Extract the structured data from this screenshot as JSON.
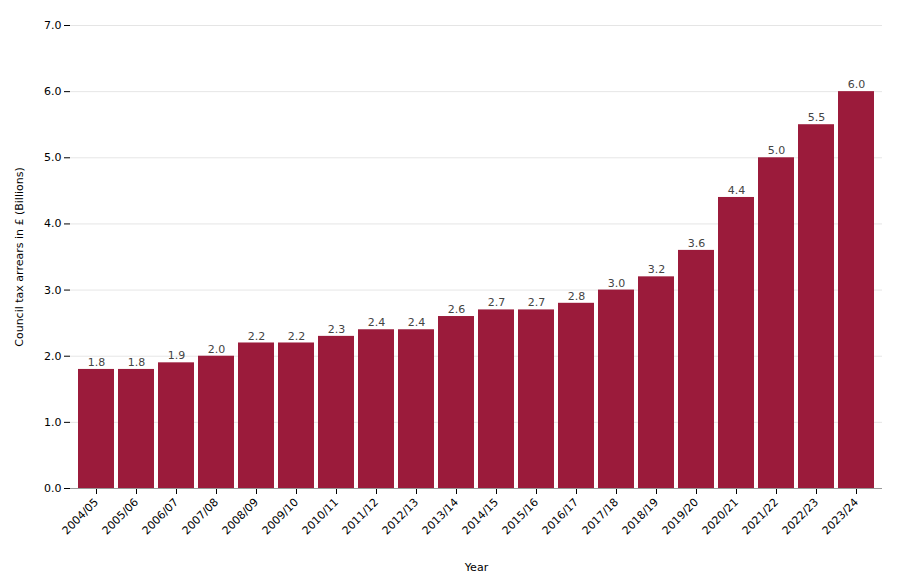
{
  "chart_data": {
    "type": "bar",
    "categories": [
      "2004/05",
      "2005/06",
      "2006/07",
      "2007/08",
      "2008/09",
      "2009/10",
      "2010/11",
      "2011/12",
      "2012/13",
      "2013/14",
      "2014/15",
      "2015/16",
      "2016/17",
      "2017/18",
      "2018/19",
      "2019/20",
      "2020/21",
      "2021/22",
      "2022/23",
      "2023/24"
    ],
    "values": [
      1.8,
      1.8,
      1.9,
      2.0,
      2.2,
      2.2,
      2.3,
      2.4,
      2.4,
      2.6,
      2.7,
      2.7,
      2.8,
      3.0,
      3.2,
      3.6,
      4.4,
      5.0,
      5.5,
      6.0
    ],
    "value_labels": [
      "1.8",
      "1.8",
      "1.9",
      "2.0",
      "2.2",
      "2.2",
      "2.3",
      "2.4",
      "2.4",
      "2.6",
      "2.7",
      "2.7",
      "2.8",
      "3.0",
      "3.2",
      "3.6",
      "4.4",
      "5.0",
      "5.5",
      "6.0"
    ],
    "data_labels": true,
    "color": "#9B1B3B",
    "xlabel": "Year",
    "ylabel": "Council tax arrears in £ (Billions)",
    "ylim": [
      0.0,
      7.0
    ],
    "yticks": [
      {
        "value": 0,
        "label": "0.0"
      },
      {
        "value": 1,
        "label": "1.0"
      },
      {
        "value": 2,
        "label": "2.0"
      },
      {
        "value": 3,
        "label": "3.0"
      },
      {
        "value": 4,
        "label": "4.0"
      },
      {
        "value": 5,
        "label": "5.0"
      },
      {
        "value": 6,
        "label": "6.0"
      },
      {
        "value": 7,
        "label": "7.0"
      }
    ],
    "grid": true
  }
}
